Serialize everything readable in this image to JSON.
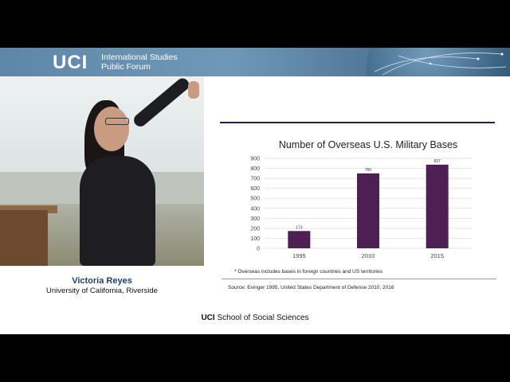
{
  "banner": {
    "logo": "UCI",
    "title_line1": "International Studies",
    "title_line2": "Public Forum"
  },
  "speaker": {
    "name": "Victoria Reyes",
    "affiliation": "University of California, Riverside"
  },
  "slide": {
    "footnote": "* Overseas includes bases in foreign countries and US territories",
    "source": "Source: Evinger 1995, United States Department of Defense 2010, 2016"
  },
  "chart_data": {
    "type": "bar",
    "title": "Number of Overseas U.S. Military Bases",
    "categories": [
      "1995",
      "2010",
      "2015"
    ],
    "values": [
      173,
      750,
      837
    ],
    "data_labels": [
      "173",
      "750",
      "837"
    ],
    "yticks": [
      0,
      100,
      200,
      300,
      400,
      500,
      600,
      700,
      800,
      900
    ],
    "ylim": [
      0,
      900
    ],
    "grid": true,
    "bar_color": "#4e1f52"
  },
  "footer": {
    "logo": "UCI",
    "text": "School of Social Sciences"
  }
}
